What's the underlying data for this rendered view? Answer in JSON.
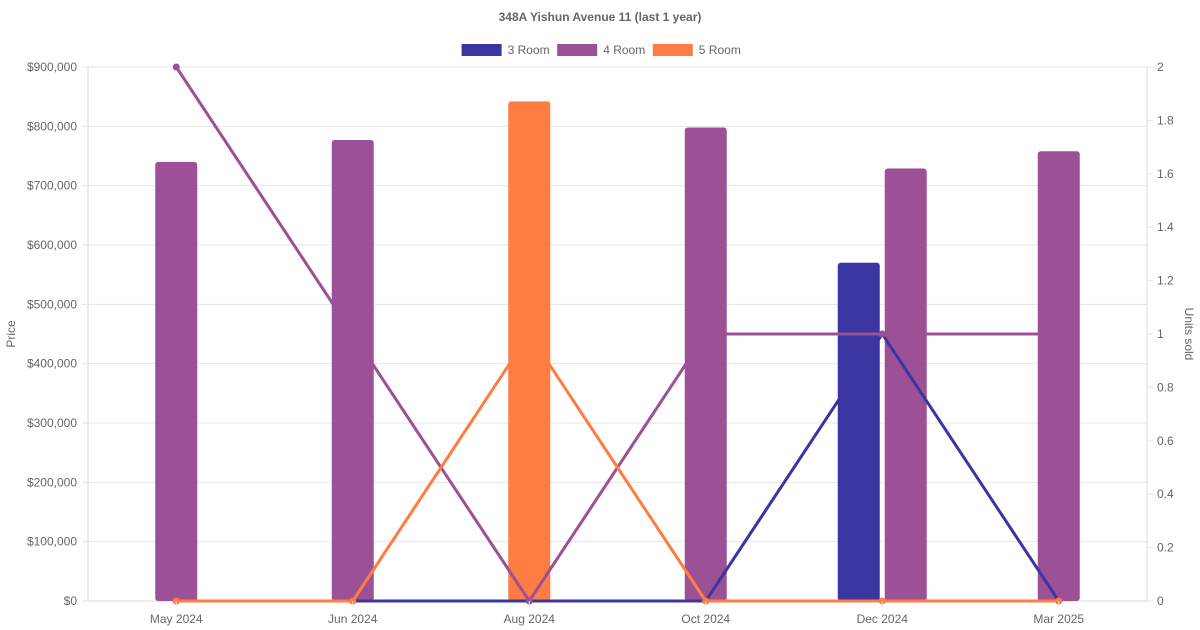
{
  "chart_data": {
    "type": "bar",
    "title": "348A Yishun Avenue 11 (last 1 year)",
    "categories": [
      "May 2024",
      "Jun 2024",
      "Aug 2024",
      "Oct 2024",
      "Dec 2024",
      "Mar 2025"
    ],
    "ylabel": "Price",
    "y2label": "Units sold",
    "ylim": [
      0,
      900000
    ],
    "y2lim": [
      0,
      2
    ],
    "y_ticks": [
      "$0",
      "$100,000",
      "$200,000",
      "$300,000",
      "$400,000",
      "$500,000",
      "$600,000",
      "$700,000",
      "$800,000",
      "$900,000"
    ],
    "y2_ticks": [
      "0",
      "0.2",
      "0.4",
      "0.6",
      "0.8",
      "1",
      "1.2",
      "1.4",
      "1.6",
      "1.8",
      "2"
    ],
    "legend_position": "top",
    "grid": true,
    "bar_series": [
      {
        "name": "3 Room",
        "color": "#3b35a1",
        "values": [
          null,
          null,
          null,
          null,
          570000,
          null
        ]
      },
      {
        "name": "4 Room",
        "color": "#9c5095",
        "values": [
          740000,
          777000,
          null,
          798000,
          729000,
          758000
        ]
      },
      {
        "name": "5 Room",
        "color": "#ff7c43",
        "values": [
          null,
          null,
          842000,
          null,
          null,
          null
        ]
      }
    ],
    "line_series": [
      {
        "name": "3 Room",
        "color": "#3b35a1",
        "axis": "right",
        "values": [
          0,
          0,
          0,
          0,
          1,
          0
        ]
      },
      {
        "name": "4 Room",
        "color": "#9c5095",
        "axis": "right",
        "values": [
          2,
          1,
          0,
          1,
          1,
          1
        ]
      },
      {
        "name": "5 Room",
        "color": "#ff7c43",
        "axis": "right",
        "values": [
          0,
          0,
          1,
          0,
          0,
          0
        ]
      }
    ]
  }
}
